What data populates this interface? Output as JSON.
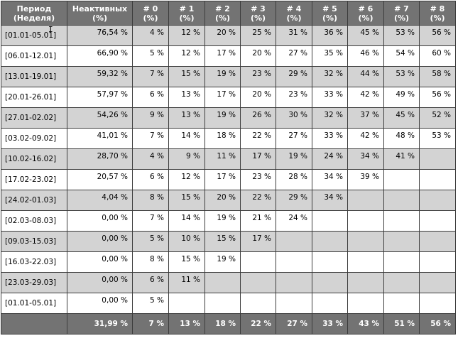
{
  "table": {
    "headers": {
      "period": [
        "Период",
        "(Неделя)"
      ],
      "inactive": [
        "Неактивных",
        "(%)"
      ],
      "buckets": [
        [
          "# 0",
          "(%)"
        ],
        [
          "# 1",
          "(%)"
        ],
        [
          "# 2",
          "(%)"
        ],
        [
          "# 3",
          "(%)"
        ],
        [
          "# 4",
          "(%)"
        ],
        [
          "# 5",
          "(%)"
        ],
        [
          "# 6",
          "(%)"
        ],
        [
          "# 7",
          "(%)"
        ],
        [
          "# 8",
          "(%)"
        ]
      ]
    },
    "rows": [
      {
        "period": "[01.01-05.01]",
        "inactive": "76,54 %",
        "values": [
          "4 %",
          "12 %",
          "20 %",
          "25 %",
          "31 %",
          "36 %",
          "45 %",
          "53 %",
          "56 %"
        ]
      },
      {
        "period": "[06.01-12.01]",
        "inactive": "66,90 %",
        "values": [
          "5 %",
          "12 %",
          "17 %",
          "20 %",
          "27 %",
          "35 %",
          "46 %",
          "54 %",
          "60 %"
        ]
      },
      {
        "period": "[13.01-19.01]",
        "inactive": "59,32 %",
        "values": [
          "7 %",
          "15 %",
          "19 %",
          "23 %",
          "29 %",
          "32 %",
          "44 %",
          "53 %",
          "58 %"
        ]
      },
      {
        "period": "[20.01-26.01]",
        "inactive": "57,97 %",
        "values": [
          "6 %",
          "13 %",
          "17 %",
          "20 %",
          "23 %",
          "33 %",
          "42 %",
          "49 %",
          "56 %"
        ]
      },
      {
        "period": "[27.01-02.02]",
        "inactive": "54,26 %",
        "values": [
          "9 %",
          "13 %",
          "19 %",
          "26 %",
          "30 %",
          "32 %",
          "37 %",
          "45 %",
          "52 %"
        ]
      },
      {
        "period": "[03.02-09.02]",
        "inactive": "41,01 %",
        "values": [
          "7 %",
          "14 %",
          "18 %",
          "22 %",
          "27 %",
          "33 %",
          "42 %",
          "48 %",
          "53 %"
        ]
      },
      {
        "period": "[10.02-16.02]",
        "inactive": "28,70 %",
        "values": [
          "4 %",
          "9 %",
          "11 %",
          "17 %",
          "19 %",
          "24 %",
          "34 %",
          "41 %",
          ""
        ]
      },
      {
        "period": "[17.02-23.02]",
        "inactive": "20,57 %",
        "values": [
          "6 %",
          "12 %",
          "17 %",
          "23 %",
          "28 %",
          "34 %",
          "39 %",
          "",
          ""
        ]
      },
      {
        "period": "[24.02-01.03]",
        "inactive": "4,04 %",
        "values": [
          "8 %",
          "15 %",
          "20 %",
          "22 %",
          "29 %",
          "34 %",
          "",
          "",
          ""
        ]
      },
      {
        "period": "[02.03-08.03]",
        "inactive": "0,00 %",
        "values": [
          "7 %",
          "14 %",
          "19 %",
          "21 %",
          "24 %",
          "",
          "",
          "",
          ""
        ]
      },
      {
        "period": "[09.03-15.03]",
        "inactive": "0,00 %",
        "values": [
          "5 %",
          "10 %",
          "15 %",
          "17 %",
          "",
          "",
          "",
          "",
          ""
        ]
      },
      {
        "period": "[16.03-22.03]",
        "inactive": "0,00 %",
        "values": [
          "8 %",
          "15 %",
          "19 %",
          "",
          "",
          "",
          "",
          "",
          ""
        ]
      },
      {
        "period": "[23.03-29.03]",
        "inactive": "0,00 %",
        "values": [
          "6 %",
          "11 %",
          "",
          "",
          "",
          "",
          "",
          "",
          ""
        ]
      },
      {
        "period": "[01.01-05.01]",
        "inactive": "0,00 %",
        "values": [
          "5 %",
          "",
          "",
          "",
          "",
          "",
          "",
          "",
          ""
        ]
      }
    ],
    "totals": {
      "period": "",
      "inactive": "31,99 %",
      "values": [
        "7 %",
        "13 %",
        "18 %",
        "22 %",
        "27 %",
        "33 %",
        "43 %",
        "51 %",
        "56 %"
      ]
    }
  },
  "cursor": {
    "icon": "text-cursor-icon",
    "glyph": "I"
  }
}
